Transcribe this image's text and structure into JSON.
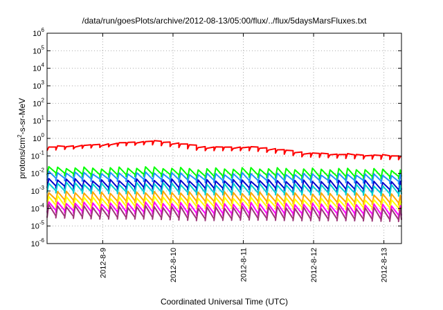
{
  "chart_data": {
    "type": "line",
    "title": "/data/run/goesPlots/archive/2012-08-13/05:00/flux/../flux/5daysMarsFluxes.txt",
    "xlabel": "Coordinated Universal Time (UTC)",
    "ylabel": {
      "prefix": "protons/cm",
      "exponent": "2",
      "suffix": "-s-sr-MeV"
    },
    "y_scale": "log",
    "ylim": [
      1e-06,
      1000000.0
    ],
    "y_ticks": [
      {
        "base": "10",
        "exp": "-6"
      },
      {
        "base": "10",
        "exp": "-5"
      },
      {
        "base": "10",
        "exp": "-4"
      },
      {
        "base": "10",
        "exp": "-3"
      },
      {
        "base": "10",
        "exp": "-2"
      },
      {
        "base": "10",
        "exp": "-1"
      },
      {
        "base": "10",
        "exp": "0"
      },
      {
        "base": "10",
        "exp": "1"
      },
      {
        "base": "10",
        "exp": "2"
      },
      {
        "base": "10",
        "exp": "3"
      },
      {
        "base": "10",
        "exp": "4"
      },
      {
        "base": "10",
        "exp": "5"
      },
      {
        "base": "10",
        "exp": "6"
      }
    ],
    "xlim": [
      "2012-08-08T05:00",
      "2012-08-13T06:00"
    ],
    "x_ticks": [
      "2012-8-9",
      "2012-8-10",
      "2012-8-11",
      "2012-8-12",
      "2012-8-13"
    ],
    "x_tick_dates": [
      "2012-08-09T00:00",
      "2012-08-10T00:00",
      "2012-08-11T00:00",
      "2012-08-12T00:00",
      "2012-08-13T00:00"
    ],
    "grid": true,
    "legend": "none",
    "sawtooth_period_hours": 3,
    "series": [
      {
        "color": "#ff0000",
        "envelope": [
          [
            0.2,
            0.32
          ],
          [
            0.3,
            0.4
          ],
          [
            0.45,
            0.7
          ],
          [
            0.2,
            0.3
          ],
          [
            0.2,
            0.3
          ],
          [
            0.09,
            0.14
          ],
          [
            0.07,
            0.12
          ],
          [
            0.06,
            0.1
          ]
        ],
        "dip_ratio": 0.6
      },
      {
        "color": "#00ff00",
        "envelope": [
          [
            0.008,
            0.022
          ],
          [
            0.006,
            0.02
          ],
          [
            0.007,
            0.022
          ],
          [
            0.005,
            0.018
          ],
          [
            0.006,
            0.02
          ],
          [
            0.005,
            0.018
          ],
          [
            0.005,
            0.018
          ],
          [
            0.005,
            0.016
          ]
        ],
        "dip_ratio": 0.35
      },
      {
        "color": "#1e90ff",
        "envelope": [
          [
            0.004,
            0.012
          ],
          [
            0.0035,
            0.01
          ],
          [
            0.0035,
            0.011
          ],
          [
            0.003,
            0.009
          ],
          [
            0.003,
            0.01
          ],
          [
            0.003,
            0.009
          ],
          [
            0.003,
            0.009
          ],
          [
            0.0025,
            0.008
          ]
        ],
        "dip_ratio": 0.35
      },
      {
        "color": "#0000cd",
        "envelope": [
          [
            0.0015,
            0.005
          ],
          [
            0.0012,
            0.004
          ],
          [
            0.0013,
            0.0045
          ],
          [
            0.0011,
            0.004
          ],
          [
            0.0012,
            0.004
          ],
          [
            0.001,
            0.0038
          ],
          [
            0.001,
            0.0038
          ],
          [
            0.0009,
            0.0032
          ]
        ],
        "dip_ratio": 0.3
      },
      {
        "color": "#00ced1",
        "envelope": [
          [
            0.0008,
            0.003
          ],
          [
            0.0007,
            0.0025
          ],
          [
            0.0007,
            0.0028
          ],
          [
            0.0006,
            0.0024
          ],
          [
            0.0006,
            0.0025
          ],
          [
            0.0006,
            0.0022
          ],
          [
            0.0006,
            0.0022
          ],
          [
            0.0005,
            0.002
          ]
        ],
        "dip_ratio": 0.3
      },
      {
        "color": "#ffa500",
        "envelope": [
          [
            0.00025,
            0.0009
          ],
          [
            0.0002,
            0.0008
          ],
          [
            0.00022,
            0.0009
          ],
          [
            0.0002,
            0.0008
          ],
          [
            0.0002,
            0.0008
          ],
          [
            0.00018,
            0.0007
          ],
          [
            0.00018,
            0.0007
          ],
          [
            0.00016,
            0.0006
          ]
        ],
        "dip_ratio": 0.3
      },
      {
        "color": "#ffff00",
        "envelope": [
          [
            0.00012,
            0.0005
          ],
          [
            0.0001,
            0.0004
          ],
          [
            0.00011,
            0.00045
          ],
          [
            0.0001,
            0.0004
          ],
          [
            0.0001,
            0.0004
          ],
          [
            9e-05,
            0.00035
          ],
          [
            9e-05,
            0.00035
          ],
          [
            8e-05,
            0.0003
          ]
        ],
        "dip_ratio": 0.3
      },
      {
        "color": "#ff00ff",
        "envelope": [
          [
            6e-05,
            0.00022
          ],
          [
            5e-05,
            0.0002
          ],
          [
            5e-05,
            0.00022
          ],
          [
            4e-05,
            0.00018
          ],
          [
            4e-05,
            0.0002
          ],
          [
            4e-05,
            0.00018
          ],
          [
            4e-05,
            0.00018
          ],
          [
            3e-05,
            0.00015
          ]
        ],
        "dip_ratio": 0.3
      },
      {
        "color": "#9c3577",
        "envelope": [
          [
            3e-05,
            0.00015
          ],
          [
            2.5e-05,
            0.00012
          ],
          [
            2.5e-05,
            0.00013
          ],
          [
            2e-05,
            0.00011
          ],
          [
            2.2e-05,
            0.00012
          ],
          [
            2e-05,
            0.00011
          ],
          [
            2e-05,
            0.00011
          ],
          [
            1.8e-05,
            0.0001
          ]
        ],
        "dip_ratio": 0.25
      }
    ]
  }
}
